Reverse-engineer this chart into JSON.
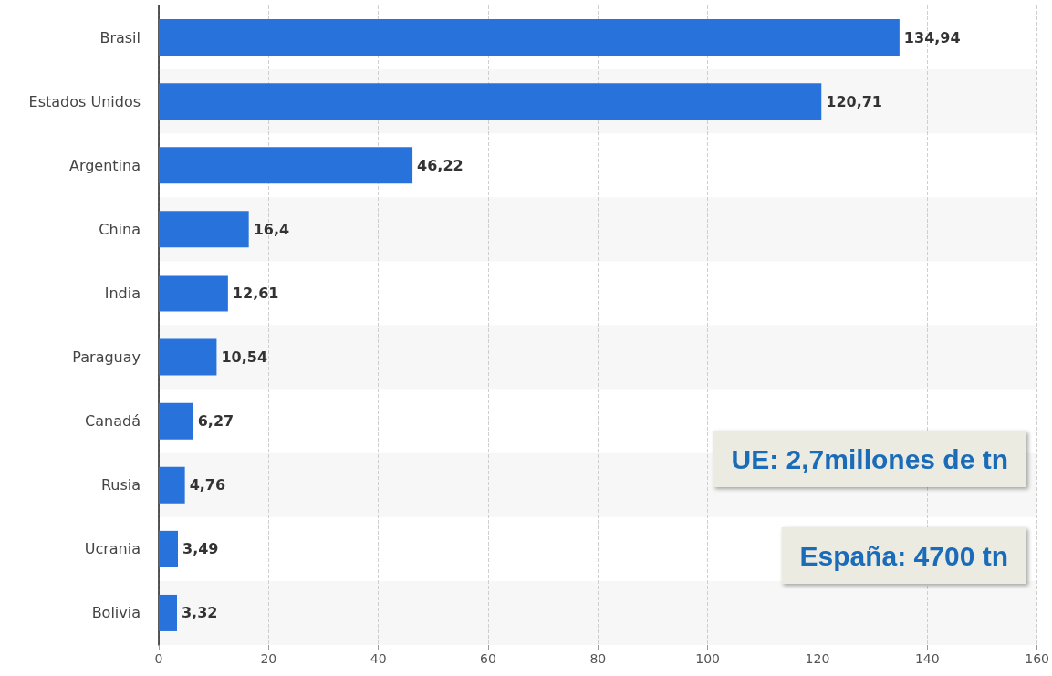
{
  "chart_data": {
    "type": "bar",
    "orientation": "horizontal",
    "categories": [
      "Brasil",
      "Estados Unidos",
      "Argentina",
      "China",
      "India",
      "Paraguay",
      "Canadá",
      "Rusia",
      "Ucrania",
      "Bolivia"
    ],
    "values": [
      134.94,
      120.71,
      46.22,
      16.4,
      12.61,
      10.54,
      6.27,
      4.76,
      3.49,
      3.32
    ],
    "value_labels": [
      "134,94",
      "120,71",
      "46,22",
      "16,4",
      "12,61",
      "10,54",
      "6,27",
      "4,76",
      "3,49",
      "3,32"
    ],
    "color": "#2872dc",
    "xlim": [
      0,
      160
    ],
    "xticks": [
      0,
      20,
      40,
      60,
      80,
      100,
      120,
      140,
      160
    ],
    "grid": "x",
    "annotations": [
      "UE: 2,7millones de tn",
      "España: 4700 tn"
    ]
  }
}
